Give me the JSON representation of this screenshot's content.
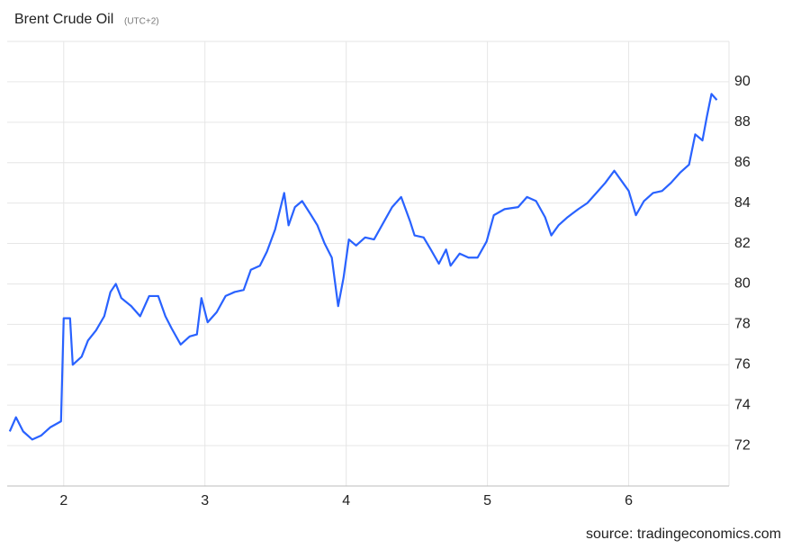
{
  "chart_data": {
    "type": "line",
    "title": "Brent Crude Oil",
    "subtitle": "(UTC+2)",
    "source": "source: tradingeconomics.com",
    "xlim": [
      1.6,
      6.71
    ],
    "xticks": [
      2,
      3,
      4,
      5,
      6
    ],
    "ylim": [
      70,
      92
    ],
    "yticks": [
      72,
      74,
      76,
      78,
      80,
      82,
      84,
      86,
      88,
      90
    ],
    "grid": true,
    "x": [
      1.618,
      1.662,
      1.713,
      1.777,
      1.841,
      1.904,
      1.981,
      2.0,
      2.045,
      2.064,
      2.127,
      2.172,
      2.229,
      2.287,
      2.331,
      2.369,
      2.408,
      2.478,
      2.541,
      2.605,
      2.669,
      2.72,
      2.764,
      2.828,
      2.892,
      2.943,
      2.975,
      3.019,
      3.083,
      3.146,
      3.21,
      3.274,
      3.325,
      3.389,
      3.439,
      3.497,
      3.561,
      3.592,
      3.637,
      3.688,
      3.752,
      3.796,
      3.847,
      3.898,
      3.943,
      3.981,
      4.019,
      4.07,
      4.134,
      4.197,
      4.261,
      4.325,
      4.389,
      4.452,
      4.484,
      4.548,
      4.599,
      4.656,
      4.707,
      4.739,
      4.803,
      4.866,
      4.93,
      4.994,
      5.045,
      5.121,
      5.217,
      5.28,
      5.344,
      5.408,
      5.452,
      5.503,
      5.567,
      5.643,
      5.707,
      5.771,
      5.834,
      5.898,
      5.949,
      6.0,
      6.051,
      6.108,
      6.172,
      6.236,
      6.299,
      6.363,
      6.427,
      6.471,
      6.522,
      6.554,
      6.586,
      6.624
    ],
    "series": [
      {
        "name": "Brent Crude Oil",
        "color": "#2962ff",
        "values": [
          72.7,
          73.4,
          72.7,
          72.3,
          72.5,
          72.9,
          73.2,
          78.3,
          78.3,
          76,
          76.4,
          77.2,
          77.7,
          78.4,
          79.6,
          80,
          79.3,
          78.9,
          78.4,
          79.4,
          79.4,
          78.4,
          77.8,
          77,
          77.4,
          77.5,
          79.3,
          78.1,
          78.6,
          79.4,
          79.6,
          79.7,
          80.7,
          80.9,
          81.6,
          82.7,
          84.5,
          82.9,
          83.8,
          84.1,
          83.4,
          82.9,
          82,
          81.3,
          78.9,
          80.3,
          82.2,
          81.9,
          82.3,
          82.2,
          83,
          83.8,
          84.3,
          83.1,
          82.4,
          82.3,
          81.7,
          81,
          81.7,
          80.9,
          81.5,
          81.3,
          81.3,
          82.1,
          83.4,
          83.7,
          83.8,
          84.3,
          84.1,
          83.3,
          82.4,
          82.9,
          83.3,
          83.7,
          84,
          84.5,
          85,
          85.6,
          85.1,
          84.6,
          83.4,
          84.1,
          84.5,
          84.6,
          85,
          85.5,
          85.9,
          87.4,
          87.1,
          88.3,
          89.4,
          89.1
        ]
      }
    ]
  }
}
